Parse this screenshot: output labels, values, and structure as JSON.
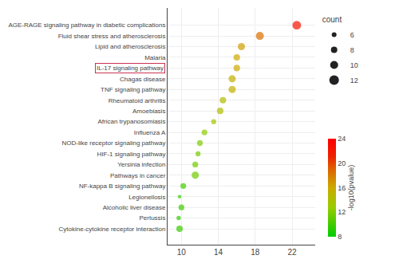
{
  "chart_data": {
    "type": "scatter",
    "orientation": "horizontal",
    "categories": [
      "AGE-RAGE signaling pathway in diabetic complications",
      "Fluid shear stress and atherosclerosis",
      "Lipid and atherosclerosis",
      "Malaria",
      "IL-17 signaling pathway",
      "Chagas disease",
      "TNF signaling pathway",
      "Rheumatoid arthritis",
      "Amoebiasis",
      "African trypanosomiasis",
      "Influenza A",
      "NOD-like receptor signaling pathway",
      "HIF-1 signaling pathway",
      "Yersinia infection",
      "Pathways in cancer",
      "NF-kappa B signaling pathway",
      "Legionellosis",
      "Alcoholic liver disease",
      "Pertussis",
      "Cytokine-cytokine receptor interaction"
    ],
    "values": [
      22.5,
      18.5,
      16.5,
      16.0,
      16.0,
      15.5,
      15.5,
      14.5,
      14.2,
      13.5,
      12.5,
      12.0,
      11.8,
      11.5,
      11.5,
      10.2,
      9.8,
      10.0,
      9.7,
      9.8
    ],
    "sizes": [
      12,
      11,
      10,
      9,
      9,
      10,
      10,
      9,
      9,
      7,
      8,
      8,
      7,
      8,
      10,
      8,
      5,
      8,
      6,
      9
    ],
    "color_values": [
      22.5,
      18.5,
      16.5,
      16.0,
      16.0,
      15.5,
      15.5,
      14.5,
      14.2,
      13.5,
      12.5,
      12.0,
      11.8,
      11.5,
      11.5,
      10.2,
      9.8,
      10.0,
      9.7,
      9.8
    ],
    "colorscale": [
      "#00cc00",
      "#99cc00",
      "#ccaa00",
      "#dd6600",
      "#ee2200",
      "#ff0000"
    ],
    "color_range": [
      8,
      24
    ],
    "color_ticks": [
      8,
      12,
      16,
      20,
      24
    ],
    "color_label": "-log10(pvalue)",
    "size_legend_title": "count",
    "size_legend_values": [
      6,
      8,
      10,
      12
    ],
    "size_legend_color": "#222222",
    "highlight": "IL-17 signaling pathway",
    "highlight_color": "#cc3355",
    "xlim": [
      8.5,
      24.5
    ],
    "xticks": [
      10,
      14,
      18,
      22
    ],
    "grid": true
  }
}
